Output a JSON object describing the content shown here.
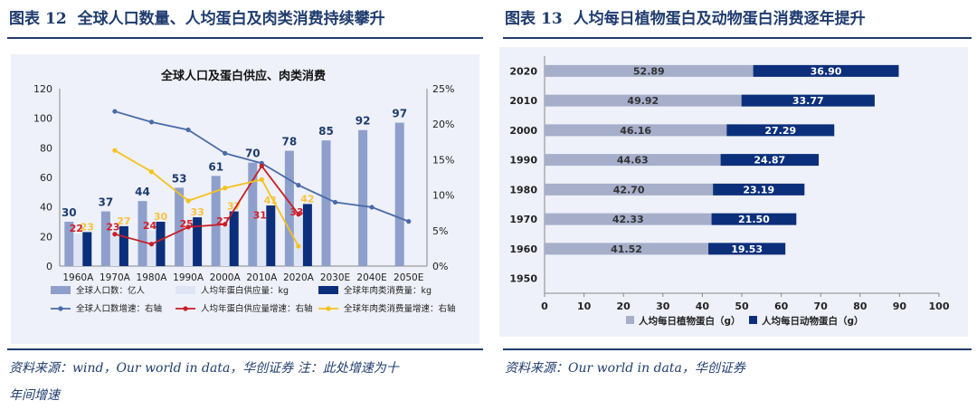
{
  "left": {
    "figure_label": "图表",
    "figure_num": "12",
    "figure_title": "全球人口数量、人均蛋白及肉类消费持续攀升",
    "source_line1": "资料来源：wind，Our world in data，华创证券 注：此处增速为十",
    "source_line2": "年间增速"
  },
  "right": {
    "figure_label": "图表",
    "figure_num": "13",
    "figure_title": "人均每日植物蛋白及动物蛋白消费逐年提升",
    "source_line1": "资料来源：Our world in data，华创证券"
  },
  "chart_data": [
    {
      "type": "bar+line",
      "title": "全球人口及蛋白供应、肉类消费",
      "categories": [
        "1960A",
        "1970A",
        "1980A",
        "1990A",
        "2000A",
        "2010A",
        "2020A",
        "2030E",
        "2040E",
        "2050E"
      ],
      "ylim": [
        0,
        120
      ],
      "yticks": [
        0,
        20,
        40,
        60,
        80,
        100,
        120
      ],
      "y2lim": [
        0,
        25
      ],
      "y2ticks": [
        "0%",
        "5%",
        "10%",
        "15%",
        "20%",
        "25%"
      ],
      "bars": [
        {
          "name": "全球人口数：亿人",
          "color": "#8e9fcc",
          "values": [
            30,
            37,
            44,
            53,
            61,
            70,
            78,
            85,
            92,
            97
          ]
        },
        {
          "name": "人均年蛋白供应量：kg",
          "color": "#dfe5f5",
          "values": [
            22,
            23,
            24,
            25,
            27,
            31,
            33,
            null,
            null,
            null
          ]
        },
        {
          "name": "全球年肉类消费量：kg",
          "color": "#0b2f7a",
          "values": [
            23,
            27,
            30,
            33,
            37,
            41,
            42,
            null,
            null,
            null
          ]
        }
      ],
      "bar_labels": [
        {
          "series": 0,
          "values": [
            "30",
            "37",
            "44",
            "53",
            "61",
            "70",
            "78",
            "85",
            "92",
            "97"
          ],
          "color": "#1f3c6e"
        },
        {
          "series": 1,
          "values": [
            "22",
            "23",
            "24",
            "25",
            "27",
            "31",
            "33"
          ],
          "color": "#d0202a"
        },
        {
          "series": 2,
          "values": [
            "23",
            "27",
            "30",
            "33",
            "37",
            "41",
            "42"
          ],
          "color": "#f5c342"
        }
      ],
      "lines": [
        {
          "name": "全球人口数增速：右轴",
          "color": "#4a6aa8",
          "values": [
            null,
            21.8,
            20.3,
            19.2,
            15.9,
            14.5,
            11.4,
            9.0,
            8.3,
            6.3
          ]
        },
        {
          "name": "人均年蛋白供应量增速：右轴",
          "color": "#c81e24",
          "values": [
            null,
            4.5,
            3.1,
            5.5,
            5.9,
            14.1,
            7.3,
            null,
            null,
            null
          ]
        },
        {
          "name": "全球年肉类消费量增速：右轴",
          "color": "#f5c11d",
          "values": [
            null,
            16.3,
            13.3,
            9.2,
            11.0,
            12.2,
            2.8,
            null,
            null,
            null
          ]
        }
      ]
    },
    {
      "type": "stacked_bar_horizontal",
      "categories": [
        "2020",
        "2010",
        "2000",
        "1990",
        "1980",
        "1970",
        "1960",
        "1950"
      ],
      "xlim": [
        0,
        100
      ],
      "xticks": [
        0,
        10,
        20,
        30,
        40,
        50,
        60,
        70,
        80,
        90,
        100
      ],
      "series": [
        {
          "name": "人均每日植物蛋白（g）",
          "color": "#a6aeca",
          "values": [
            52.89,
            49.92,
            46.16,
            44.63,
            42.7,
            42.33,
            41.52,
            null
          ]
        },
        {
          "name": "人均每日动物蛋白（g）",
          "color": "#0b2f7a",
          "values": [
            36.9,
            33.77,
            27.29,
            24.87,
            23.19,
            21.5,
            19.53,
            null
          ]
        }
      ]
    }
  ]
}
